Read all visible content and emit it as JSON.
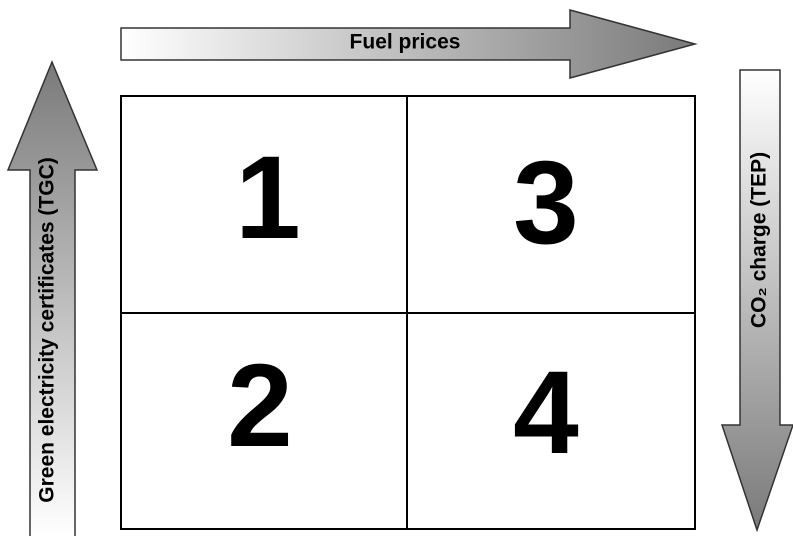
{
  "arrows": {
    "top": {
      "label": "Fuel prices"
    },
    "left": {
      "label": "Green electricity certificates (TGC)"
    },
    "right": {
      "label": "CO₂ charge (TEP)"
    }
  },
  "grid": {
    "cells": [
      {
        "label": "1"
      },
      {
        "label": "3"
      },
      {
        "label": "2"
      },
      {
        "label": "4"
      }
    ]
  }
}
